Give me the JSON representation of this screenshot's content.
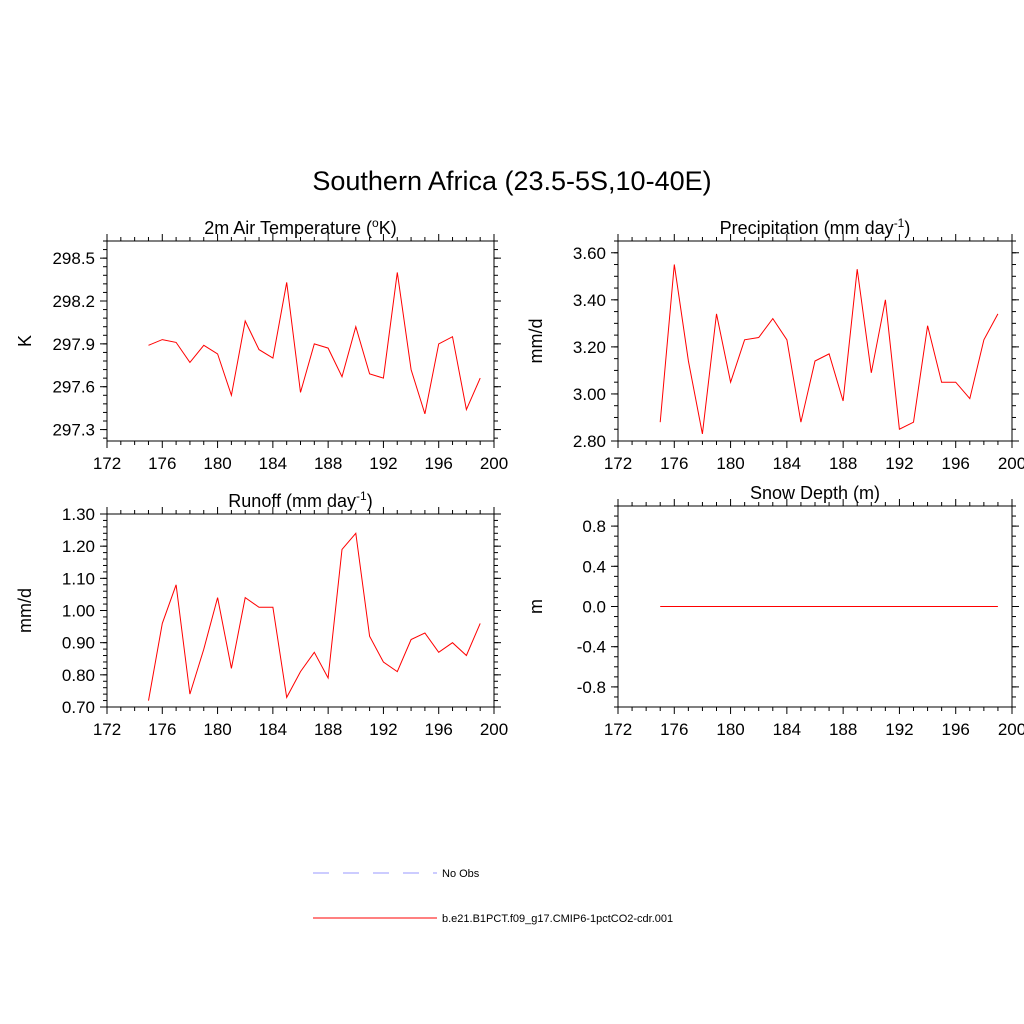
{
  "title": "Southern Africa (23.5-5S,10-40E)",
  "line_color": "#ff0000",
  "obs_color": "#9999ff",
  "legend": [
    {
      "label": "No Obs",
      "style": "dashed",
      "color": "#9999ff"
    },
    {
      "label": "b.e21.B1PCT.f09_g17.CMIP6-1pctCO2-cdr.001",
      "style": "solid",
      "color": "#ff0000"
    }
  ],
  "chart_data": [
    {
      "type": "line",
      "title": "2m Air Temperature (",
      "title_sup": "o",
      "title_after": "K)",
      "ylabel": "K",
      "xlim": [
        172,
        200
      ],
      "xticks": [
        "172",
        "176",
        "180",
        "184",
        "188",
        "192",
        "196",
        "200"
      ],
      "ylim": [
        297.22,
        298.62
      ],
      "yticks": [
        "297.3",
        "297.6",
        "297.9",
        "298.2",
        "298.5"
      ],
      "ytick_values": [
        297.3,
        297.6,
        297.9,
        298.2,
        298.5
      ],
      "yminor_step": 0.06,
      "x": [
        175,
        176,
        177,
        178,
        179,
        180,
        181,
        182,
        183,
        184,
        185,
        186,
        187,
        188,
        189,
        190,
        191,
        192,
        193,
        194,
        195,
        196,
        197,
        198,
        199
      ],
      "series": [
        {
          "values": [
            297.89,
            297.93,
            297.91,
            297.77,
            297.89,
            297.83,
            297.54,
            298.06,
            297.86,
            297.8,
            298.33,
            297.56,
            297.9,
            297.87,
            297.67,
            298.02,
            297.69,
            297.66,
            298.4,
            297.72,
            297.41,
            297.9,
            297.95,
            297.44,
            297.66
          ]
        }
      ]
    },
    {
      "type": "line",
      "title": "Precipitation (mm day",
      "title_sup": "-1",
      "title_after": ")",
      "ylabel": "mm/d",
      "xlim": [
        172,
        200
      ],
      "xticks": [
        "172",
        "176",
        "180",
        "184",
        "188",
        "192",
        "196",
        "200"
      ],
      "ylim": [
        2.8,
        3.65
      ],
      "yticks": [
        "2.80",
        "3.00",
        "3.20",
        "3.40",
        "3.60"
      ],
      "ytick_values": [
        2.8,
        3.0,
        3.2,
        3.4,
        3.6
      ],
      "yminor_step": 0.05,
      "x": [
        175,
        176,
        177,
        178,
        179,
        180,
        181,
        182,
        183,
        184,
        185,
        186,
        187,
        188,
        189,
        190,
        191,
        192,
        193,
        194,
        195,
        196,
        197,
        198,
        199
      ],
      "series": [
        {
          "values": [
            2.88,
            3.55,
            3.14,
            2.83,
            3.34,
            3.05,
            3.23,
            3.24,
            3.32,
            3.23,
            2.88,
            3.14,
            3.17,
            2.97,
            3.53,
            3.09,
            3.4,
            2.85,
            2.88,
            3.29,
            3.05,
            3.05,
            2.98,
            3.23,
            3.34
          ]
        }
      ]
    },
    {
      "type": "line",
      "title": "Runoff (mm day",
      "title_sup": "-1",
      "title_after": ")",
      "ylabel": "mm/d",
      "xlim": [
        172,
        200
      ],
      "xticks": [
        "172",
        "176",
        "180",
        "184",
        "188",
        "192",
        "196",
        "200"
      ],
      "ylim": [
        0.7,
        1.3
      ],
      "yticks": [
        "0.70",
        "0.80",
        "0.90",
        "1.00",
        "1.10",
        "1.20",
        "1.30"
      ],
      "ytick_values": [
        0.7,
        0.8,
        0.9,
        1.0,
        1.1,
        1.2,
        1.3
      ],
      "yminor_step": 0.02,
      "x": [
        175,
        176,
        177,
        178,
        179,
        180,
        181,
        182,
        183,
        184,
        185,
        186,
        187,
        188,
        189,
        190,
        191,
        192,
        193,
        194,
        195,
        196,
        197,
        198,
        199
      ],
      "series": [
        {
          "values": [
            0.72,
            0.96,
            1.08,
            0.74,
            0.88,
            1.04,
            0.82,
            1.04,
            1.01,
            1.01,
            0.73,
            0.81,
            0.87,
            0.79,
            1.19,
            1.24,
            0.92,
            0.84,
            0.81,
            0.91,
            0.93,
            0.87,
            0.9,
            0.86,
            0.96
          ]
        }
      ]
    },
    {
      "type": "line",
      "title": "Snow Depth (m)",
      "title_sup": "",
      "title_after": "",
      "ylabel": "m",
      "xlim": [
        172,
        200
      ],
      "xticks": [
        "172",
        "176",
        "180",
        "184",
        "188",
        "192",
        "196",
        "200"
      ],
      "ylim": [
        -1.0,
        1.0
      ],
      "yticks": [
        "-0.8",
        "-0.4",
        "0.0",
        "0.4",
        "0.8"
      ],
      "ytick_values": [
        -0.8,
        -0.4,
        0.0,
        0.4,
        0.8
      ],
      "yminor_step": 0.1,
      "x": [
        175,
        176,
        177,
        178,
        179,
        180,
        181,
        182,
        183,
        184,
        185,
        186,
        187,
        188,
        189,
        190,
        191,
        192,
        193,
        194,
        195,
        196,
        197,
        198,
        199
      ],
      "series": [
        {
          "values": [
            0,
            0,
            0,
            0,
            0,
            0,
            0,
            0,
            0,
            0,
            0,
            0,
            0,
            0,
            0,
            0,
            0,
            0,
            0,
            0,
            0,
            0,
            0,
            0,
            0
          ]
        }
      ]
    }
  ]
}
